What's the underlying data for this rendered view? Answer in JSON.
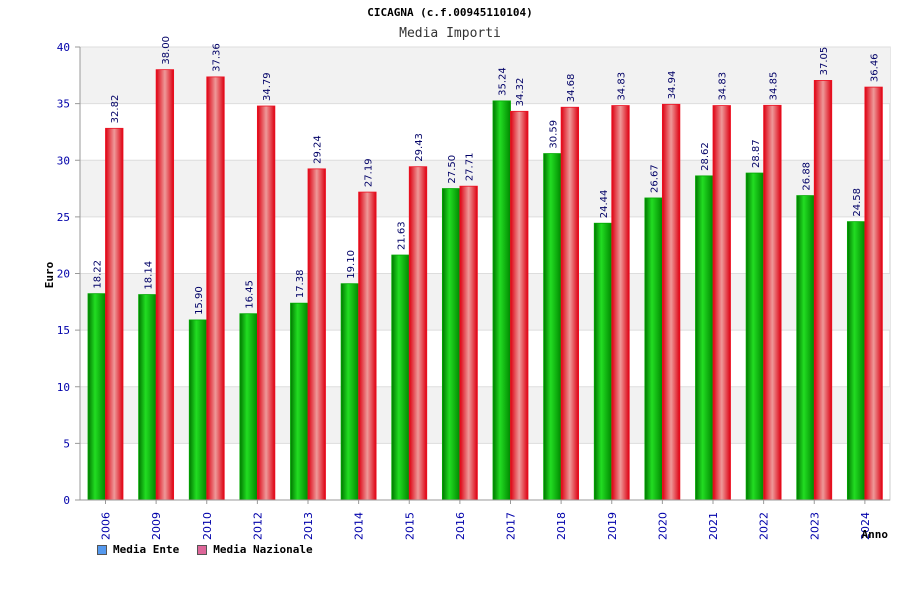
{
  "chart_data": {
    "type": "bar",
    "title": "CICAGNA (c.f.00945110104)",
    "subtitle": "Media Importi",
    "xlabel": "Anno",
    "ylabel": "Euro",
    "ylim": [
      0,
      40
    ],
    "yticks": [
      0,
      5,
      10,
      15,
      20,
      25,
      30,
      35,
      40
    ],
    "categories": [
      "2006",
      "2009",
      "2010",
      "2012",
      "2013",
      "2014",
      "2015",
      "2016",
      "2017",
      "2018",
      "2019",
      "2020",
      "2021",
      "2022",
      "2023",
      "2024"
    ],
    "series": [
      {
        "name": "Media Ente",
        "color": "#00aa00",
        "legend_color": "#5599ee",
        "values": [
          18.22,
          18.14,
          15.9,
          16.45,
          17.38,
          19.1,
          21.63,
          27.5,
          35.24,
          30.59,
          24.44,
          26.67,
          28.62,
          28.87,
          26.88,
          24.58
        ],
        "labels": [
          "18.22",
          "18.14",
          "15.90",
          "16.45",
          "17.38",
          "19.10",
          "21.63",
          "27.50",
          "35.24",
          "30.59",
          "24.44",
          "26.67",
          "28.62",
          "28.87",
          "26.88",
          "24.58"
        ]
      },
      {
        "name": "Media Nazionale",
        "color": "#ee1122",
        "legend_color": "#dd6699",
        "values": [
          32.82,
          38.0,
          37.36,
          34.79,
          29.24,
          27.19,
          29.43,
          27.71,
          34.32,
          34.68,
          34.83,
          34.94,
          34.83,
          34.85,
          37.05,
          36.46
        ],
        "labels": [
          "32.82",
          "38.00",
          "37.36",
          "34.79",
          "29.24",
          "27.19",
          "29.43",
          "27.71",
          "34.32",
          "34.68",
          "34.83",
          "34.94",
          "34.83",
          "34.85",
          "37.05",
          "36.46"
        ]
      }
    ],
    "grid": true,
    "legend_position": "bottom-left"
  }
}
